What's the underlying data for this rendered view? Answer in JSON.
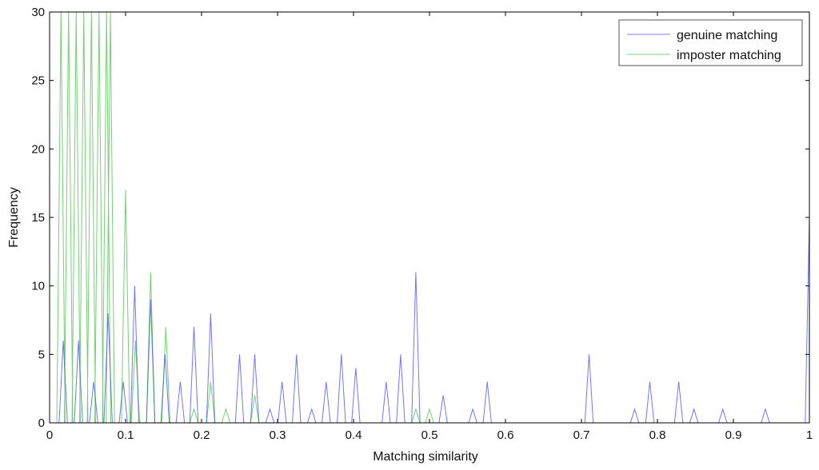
{
  "chart_data": {
    "type": "line",
    "title": "",
    "xlabel": "Matching similarity",
    "ylabel": "Frequency",
    "xlim": [
      0,
      1
    ],
    "ylim": [
      0,
      30
    ],
    "xticks": [
      "0",
      "0.1",
      "0.2",
      "0.3",
      "0.4",
      "0.5",
      "0.6",
      "0.7",
      "0.8",
      "0.9",
      "1"
    ],
    "yticks": [
      "0",
      "5",
      "10",
      "15",
      "20",
      "25",
      "30"
    ],
    "grid": false,
    "legend_position": "top-right",
    "series": [
      {
        "name": "genuine matching",
        "color": "#0000ff",
        "peaks": [
          [
            0.018,
            6
          ],
          [
            0.038,
            6
          ],
          [
            0.058,
            3
          ],
          [
            0.077,
            8
          ],
          [
            0.097,
            3
          ],
          [
            0.112,
            10
          ],
          [
            0.133,
            9
          ],
          [
            0.152,
            5
          ],
          [
            0.172,
            3
          ],
          [
            0.19,
            7
          ],
          [
            0.212,
            8
          ],
          [
            0.25,
            5
          ],
          [
            0.27,
            5
          ],
          [
            0.29,
            1
          ],
          [
            0.306,
            3
          ],
          [
            0.325,
            5
          ],
          [
            0.345,
            1
          ],
          [
            0.364,
            3
          ],
          [
            0.384,
            5
          ],
          [
            0.403,
            4
          ],
          [
            0.443,
            3
          ],
          [
            0.462,
            5
          ],
          [
            0.482,
            11
          ],
          [
            0.518,
            2
          ],
          [
            0.557,
            1
          ],
          [
            0.576,
            3
          ],
          [
            0.71,
            5
          ],
          [
            0.77,
            1
          ],
          [
            0.79,
            3
          ],
          [
            0.828,
            3
          ],
          [
            0.848,
            1
          ],
          [
            0.886,
            1
          ],
          [
            0.942,
            1
          ],
          [
            1.0,
            15
          ]
        ]
      },
      {
        "name": "imposter matching",
        "color": "#00aa00",
        "peaks": [
          [
            0.015,
            30
          ],
          [
            0.025,
            30
          ],
          [
            0.035,
            30
          ],
          [
            0.045,
            30
          ],
          [
            0.055,
            30
          ],
          [
            0.065,
            30
          ],
          [
            0.075,
            30
          ],
          [
            0.08,
            30
          ],
          [
            0.1,
            17
          ],
          [
            0.113,
            6
          ],
          [
            0.133,
            11
          ],
          [
            0.153,
            7
          ],
          [
            0.19,
            1
          ],
          [
            0.212,
            3
          ],
          [
            0.232,
            1
          ],
          [
            0.27,
            2
          ],
          [
            0.482,
            1
          ],
          [
            0.5,
            1
          ]
        ]
      }
    ]
  }
}
